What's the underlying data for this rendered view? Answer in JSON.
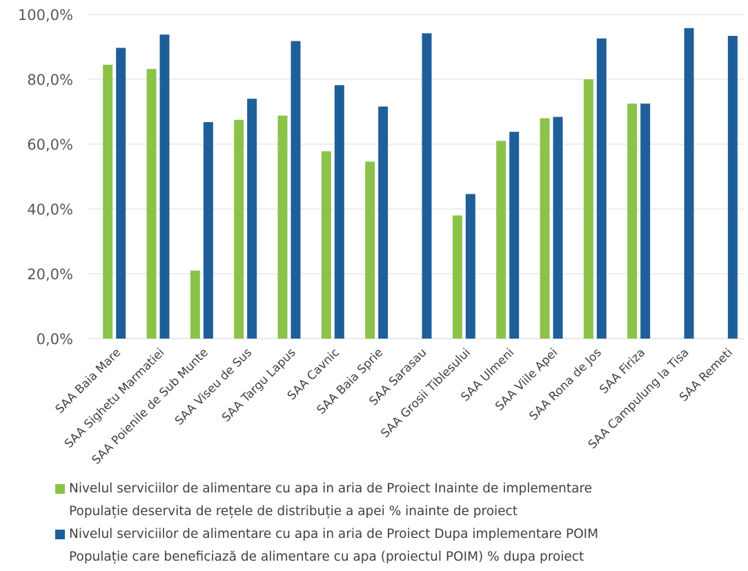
{
  "chart_data": {
    "type": "bar",
    "categories": [
      "SAA Baia Mare",
      "SAA Sighetu Marmatiei",
      "SAA Poienile de Sub Munte",
      "SAA Viseu de Sus",
      "SAA Targu Lapus",
      "SAA Cavnic",
      "SAA Baia Sprie",
      "SAA Sarasau",
      "SAA Grosii Tiblesului",
      "SAA Ulmeni",
      "SAA Viile Apei",
      "SAA Rona de Jos",
      "SAA Firiza",
      "SAA Campulung la Tisa",
      "SAA Remeti"
    ],
    "series": [
      {
        "name": "Nivelul  serviciilor de alimentare cu apa in aria de Proiect Inainte de implementare Populație deservita de rețele de distribuție a apei % inainte de proiect",
        "name_lines": [
          "Nivelul  serviciilor de alimentare cu apa in aria de Proiect Inainte de implementare",
          "Populație deservita de rețele de distribuție a apei % inainte de proiect"
        ],
        "color": "#8bc34a",
        "values": [
          84.5,
          83.2,
          21.0,
          67.5,
          68.8,
          57.8,
          54.6,
          0,
          38.0,
          61.0,
          68.0,
          80.0,
          72.5,
          0,
          0
        ]
      },
      {
        "name": "Nivelul  serviciilor de alimentare cu apa in aria de Proiect Dupa implementare POIM Populație care beneficiază de alimentare cu apa (proiectul  POIM) % dupa proiect",
        "name_lines": [
          "Nivelul  serviciilor de alimentare cu apa in aria de Proiect Dupa implementare POIM",
          "Populație care beneficiază de alimentare cu apa (proiectul  POIM) % dupa proiect"
        ],
        "color": "#1f5f99",
        "values": [
          89.7,
          93.8,
          66.8,
          74.0,
          91.8,
          78.2,
          71.6,
          94.2,
          44.6,
          63.8,
          68.4,
          92.6,
          72.5,
          95.8,
          93.4
        ]
      }
    ],
    "yticks": [
      "0,0%",
      "20,0%",
      "40,0%",
      "60,0%",
      "80,0%",
      "100,0%"
    ],
    "ylim": [
      0,
      100
    ],
    "grid": true,
    "legend_position": "bottom"
  }
}
